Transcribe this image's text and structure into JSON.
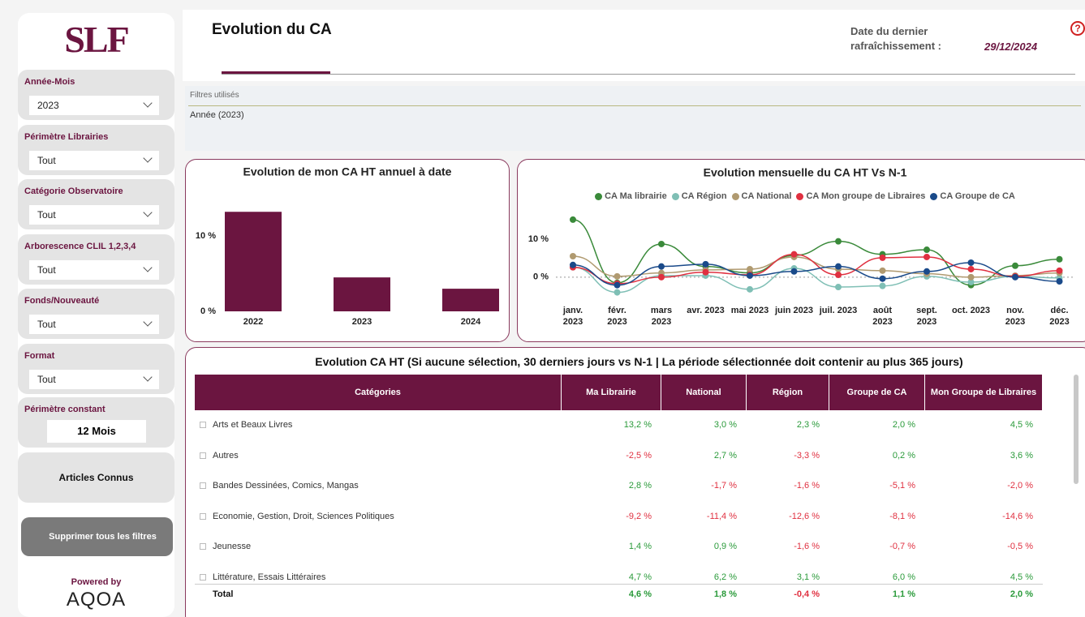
{
  "sidebar": {
    "logo": "SLF",
    "filters": [
      {
        "label": "Année-Mois",
        "value": "2023"
      },
      {
        "label": "Périmètre Librairies",
        "value": "Tout"
      },
      {
        "label": "Catégorie Observatoire",
        "value": "Tout"
      },
      {
        "label": "Arborescence CLIL 1,2,3,4",
        "value": "Tout"
      },
      {
        "label": "Fonds/Nouveauté",
        "value": "Tout"
      },
      {
        "label": "Format",
        "value": "Tout"
      }
    ],
    "constant": {
      "label": "Périmètre constant",
      "value": "12 Mois"
    },
    "buttons": [
      "Articles Connus",
      "Supprimer tous les filtres"
    ],
    "powered_by": "Powered by",
    "brand": "AQOA"
  },
  "header": {
    "title": "Evolution du CA",
    "refresh_label": "Date du dernier rafraîchissement :",
    "refresh_date": "29/12/2024"
  },
  "filters_used": {
    "title": "Filtres utilisés",
    "items": [
      "Année (2023)"
    ]
  },
  "chart_data": [
    {
      "type": "bar",
      "title": "Evolution de mon CA HT annuel à date",
      "categories": [
        "2022",
        "2023",
        "2024"
      ],
      "values": [
        13.2,
        4.5,
        3.0
      ],
      "color": "#6b1540",
      "ylim": [
        0,
        15
      ],
      "yticks": [
        {
          "value": 0,
          "label": "0 %"
        },
        {
          "value": 10,
          "label": "10 %"
        }
      ],
      "grid": false
    },
    {
      "type": "line",
      "title": "Evolution mensuelle du CA HT Vs N-1",
      "categories": [
        "janv. 2023",
        "févr. 2023",
        "mars 2023",
        "avr. 2023",
        "mai 2023",
        "juin 2023",
        "juil. 2023",
        "août 2023",
        "sept. 2023",
        "oct. 2023",
        "nov. 2023",
        "déc. 2023"
      ],
      "series": [
        {
          "name": "CA Ma librairie",
          "color": "#3a8a3a",
          "values": [
            15.1,
            -1.5,
            8.7,
            2.8,
            1.1,
            5.7,
            9.4,
            6.0,
            7.2,
            -2.1,
            3.0,
            4.7
          ]
        },
        {
          "name": "CA Région",
          "color": "#7fbfb5",
          "values": [
            2.6,
            -4.0,
            0.4,
            0.4,
            -3.2,
            2.3,
            -2.6,
            -2.3,
            0.2,
            -1.3,
            0.2,
            -0.2
          ]
        },
        {
          "name": "CA National",
          "color": "#b09a70",
          "values": [
            5.5,
            0.2,
            1.1,
            1.9,
            2.1,
            5.3,
            2.1,
            1.7,
            0.9,
            0.0,
            0.4,
            1.1
          ]
        },
        {
          "name": "CA Mon groupe de Libraires",
          "color": "#e03040",
          "values": [
            2.6,
            -1.7,
            0.0,
            1.3,
            0.6,
            6.0,
            0.6,
            5.1,
            5.3,
            2.1,
            0.2,
            1.7
          ]
        },
        {
          "name": "CA Groupe de CA",
          "color": "#1a4a8a",
          "values": [
            3.2,
            -2.1,
            2.8,
            3.4,
            0.4,
            1.5,
            2.8,
            -0.4,
            1.5,
            3.8,
            0.0,
            -1.1
          ]
        }
      ],
      "ylim": [
        -6,
        17
      ],
      "yticks": [
        {
          "value": 0,
          "label": "0 %"
        },
        {
          "value": 10,
          "label": "10 %"
        }
      ],
      "grid": true,
      "legend": "top"
    }
  ],
  "table": {
    "title": "Evolution CA HT (Si aucune sélection, 30 derniers jours vs N-1 | La période sélectionnée doit contenir au plus 365 jours)",
    "columns": [
      "Catégories",
      "Ma Librairie",
      "National",
      "Région",
      "Groupe de CA",
      "Mon Groupe de Libraires"
    ],
    "rows": [
      [
        "Arts et Beaux Livres",
        "13,2 %",
        "3,0 %",
        "2,3 %",
        "2,0 %",
        "4,5 %"
      ],
      [
        "Autres",
        "-2,5 %",
        "2,7 %",
        "-3,3 %",
        "0,2 %",
        "3,6 %"
      ],
      [
        "Bandes Dessinées, Comics, Mangas",
        "2,8 %",
        "-1,7 %",
        "-1,6 %",
        "-5,1 %",
        "-2,0 %"
      ],
      [
        "Economie, Gestion, Droit, Sciences Politiques",
        "-9,2 %",
        "-11,4 %",
        "-12,6 %",
        "-8,1 %",
        "-14,6 %"
      ],
      [
        "Jeunesse",
        "1,4 %",
        "0,9 %",
        "-1,6 %",
        "-0,7 %",
        "-0,5 %"
      ],
      [
        "Littérature, Essais Littéraires",
        "4,7 %",
        "6,2 %",
        "3,1 %",
        "6,0 %",
        "4,5 %"
      ]
    ],
    "total": [
      "Total",
      "4,6 %",
      "1,8 %",
      "-0,4 %",
      "1,1 %",
      "2,0 %"
    ]
  }
}
